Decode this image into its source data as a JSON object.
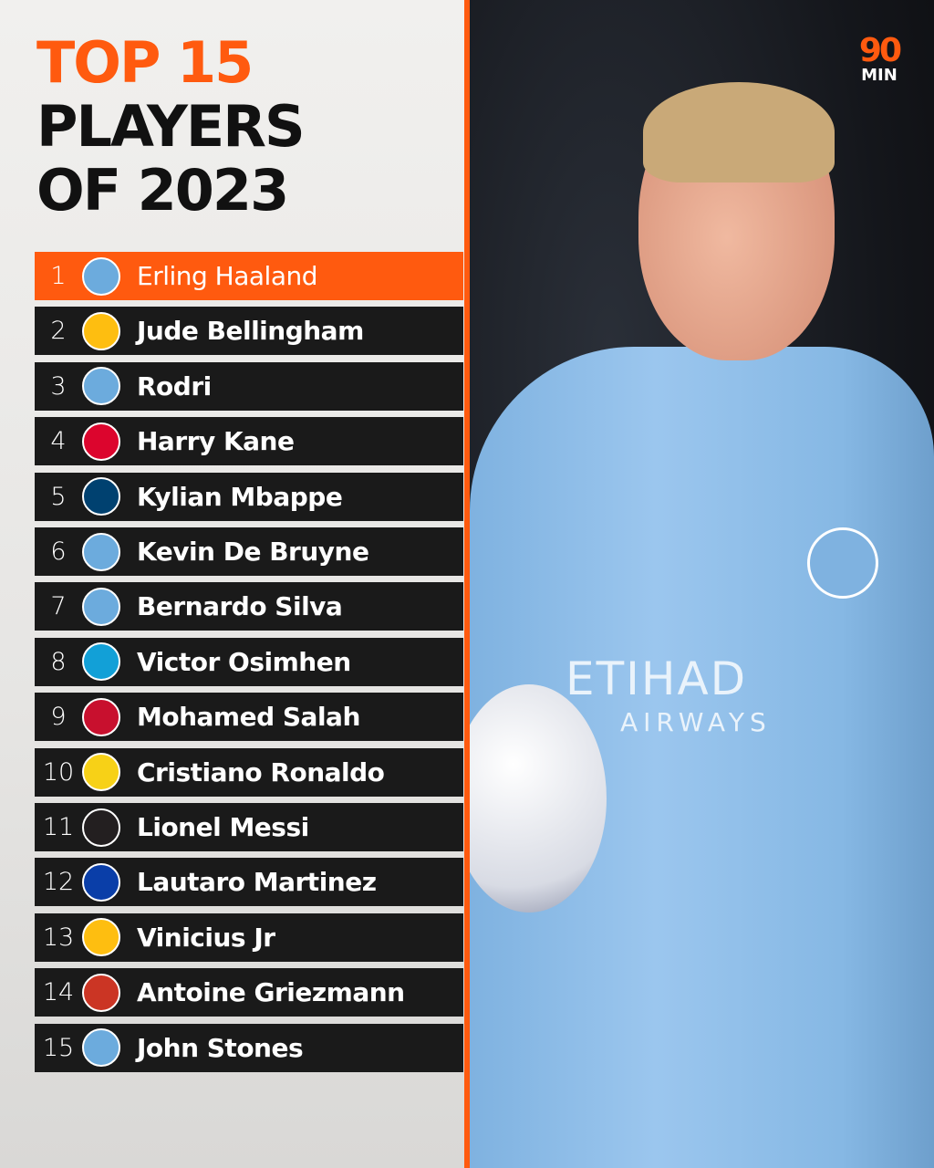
{
  "title": {
    "line1": "TOP 15",
    "line2": "PLAYERS",
    "line3": "OF 2023"
  },
  "logo": {
    "number": "90",
    "word": "MIN"
  },
  "accent": "#ff5a0f",
  "players": [
    {
      "rank": "1",
      "name": "Erling Haaland",
      "club_icon": "manchester-city-crest",
      "color": "#6cabdd"
    },
    {
      "rank": "2",
      "name": "Jude Bellingham",
      "club_icon": "real-madrid-crest",
      "color": "#febe10"
    },
    {
      "rank": "3",
      "name": "Rodri",
      "club_icon": "manchester-city-crest",
      "color": "#6cabdd"
    },
    {
      "rank": "4",
      "name": "Harry Kane",
      "club_icon": "bayern-munich-crest",
      "color": "#dc052d"
    },
    {
      "rank": "5",
      "name": "Kylian Mbappe",
      "club_icon": "psg-crest",
      "color": "#004170"
    },
    {
      "rank": "6",
      "name": "Kevin De Bruyne",
      "club_icon": "manchester-city-crest",
      "color": "#6cabdd"
    },
    {
      "rank": "7",
      "name": "Bernardo Silva",
      "club_icon": "manchester-city-crest",
      "color": "#6cabdd"
    },
    {
      "rank": "8",
      "name": "Victor Osimhen",
      "club_icon": "napoli-crest",
      "color": "#12a0d7"
    },
    {
      "rank": "9",
      "name": "Mohamed Salah",
      "club_icon": "liverpool-crest",
      "color": "#c8102e"
    },
    {
      "rank": "10",
      "name": "Cristiano Ronaldo",
      "club_icon": "al-nassr-crest",
      "color": "#f7d117"
    },
    {
      "rank": "11",
      "name": "Lionel Messi",
      "club_icon": "inter-miami-crest",
      "color": "#231f20"
    },
    {
      "rank": "12",
      "name": "Lautaro Martinez",
      "club_icon": "inter-milan-crest",
      "color": "#0a3ea8"
    },
    {
      "rank": "13",
      "name": "Vinicius Jr",
      "club_icon": "real-madrid-crest",
      "color": "#febe10"
    },
    {
      "rank": "14",
      "name": "Antoine Griezmann",
      "club_icon": "atletico-madrid-crest",
      "color": "#cb3524"
    },
    {
      "rank": "15",
      "name": "John Stones",
      "club_icon": "manchester-city-crest",
      "color": "#6cabdd"
    }
  ],
  "photo": {
    "sponsor": "ETIHAD",
    "sponsor_sub": "AIRWAYS"
  }
}
